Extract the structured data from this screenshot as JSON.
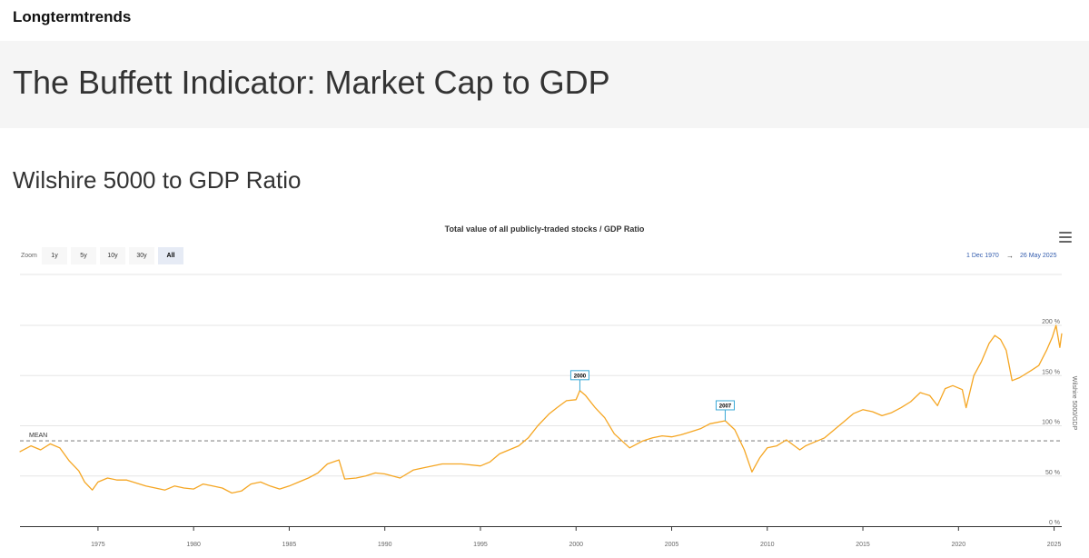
{
  "brand": "Longtermtrends",
  "page_title": "The Buffett Indicator: Market Cap to GDP",
  "section_title": "Wilshire 5000 to GDP Ratio",
  "colors": {
    "line": "#f5a623",
    "flag_border": "#3aa9d6",
    "mean": "#888888",
    "accent": "#335cad"
  },
  "range_selector": {
    "zoom_label": "Zoom",
    "buttons": [
      "1y",
      "5y",
      "10y",
      "30y",
      "All"
    ],
    "active": "All",
    "from": "1 Dec 1970",
    "arrow": "→",
    "to": "26 May 2025"
  },
  "menu_icon": "hamburger-icon",
  "chart_data": {
    "type": "line",
    "title": "Total value of all publicly-traded stocks / GDP Ratio",
    "ylabel": "Wilshire 5000/GDP",
    "xlim": [
      1970.92,
      2025.4
    ],
    "ylim": [
      0,
      200
    ],
    "x_ticks": [
      1975,
      1980,
      1985,
      1990,
      1995,
      2000,
      2005,
      2010,
      2015,
      2020,
      2025
    ],
    "y_ticks": [
      {
        "value": 0,
        "label": "0 %"
      },
      {
        "value": 50,
        "label": "50 %"
      },
      {
        "value": 100,
        "label": "100 %"
      },
      {
        "value": 150,
        "label": "150 %"
      },
      {
        "value": 200,
        "label": "200 %"
      }
    ],
    "mean": {
      "value": 85,
      "label": "MEAN"
    },
    "flags": [
      {
        "x": 2000.2,
        "y": 135,
        "label": "2000"
      },
      {
        "x": 2007.8,
        "y": 105,
        "label": "2007"
      }
    ],
    "grid": true,
    "series": [
      {
        "x": [
          1970.9,
          1971.5,
          1972.0,
          1972.5,
          1973.0,
          1973.5,
          1974.0,
          1974.3,
          1974.7,
          1975.0,
          1975.5,
          1976.0,
          1976.5,
          1977.0,
          1977.5,
          1978.0,
          1978.5,
          1979.0,
          1979.5,
          1980.0,
          1980.5,
          1981.0,
          1981.5,
          1982.0,
          1982.5,
          1983.0,
          1983.5,
          1984.0,
          1984.5,
          1985.0,
          1985.5,
          1986.0,
          1986.5,
          1987.0,
          1987.6,
          1987.9,
          1988.5,
          1989.0,
          1989.5,
          1990.0,
          1990.8,
          1991.5,
          1992.0,
          1993.0,
          1994.0,
          1995.0,
          1995.5,
          1996.0,
          1996.5,
          1997.0,
          1997.5,
          1998.0,
          1998.6,
          1999.0,
          1999.5,
          2000.0,
          2000.2,
          2000.5,
          2001.0,
          2001.5,
          2002.0,
          2002.8,
          2003.5,
          2004.0,
          2004.5,
          2005.0,
          2005.5,
          2006.0,
          2006.5,
          2007.0,
          2007.8,
          2008.3,
          2008.8,
          2009.2,
          2009.6,
          2010.0,
          2010.5,
          2011.0,
          2011.7,
          2012.0,
          2012.5,
          2013.0,
          2013.5,
          2014.0,
          2014.5,
          2015.0,
          2015.5,
          2016.0,
          2016.5,
          2017.0,
          2017.5,
          2018.0,
          2018.5,
          2018.9,
          2019.3,
          2019.7,
          2020.2,
          2020.4,
          2020.8,
          2021.2,
          2021.6,
          2021.9,
          2022.2,
          2022.5,
          2022.8,
          2023.2,
          2023.8,
          2024.2,
          2024.6,
          2024.9,
          2025.1,
          2025.3,
          2025.4
        ],
        "y": [
          74,
          80,
          76,
          82,
          78,
          65,
          55,
          44,
          36,
          44,
          48,
          46,
          46,
          43,
          40,
          38,
          36,
          40,
          38,
          37,
          42,
          40,
          38,
          33,
          35,
          42,
          44,
          40,
          37,
          40,
          44,
          48,
          53,
          62,
          66,
          47,
          48,
          50,
          53,
          52,
          48,
          56,
          58,
          62,
          62,
          60,
          64,
          72,
          76,
          80,
          88,
          100,
          112,
          118,
          125,
          126,
          135,
          130,
          118,
          108,
          92,
          78,
          85,
          88,
          90,
          89,
          91,
          94,
          97,
          102,
          105,
          96,
          76,
          54,
          68,
          78,
          80,
          86,
          76,
          80,
          84,
          88,
          96,
          104,
          112,
          116,
          114,
          110,
          113,
          118,
          124,
          133,
          130,
          120,
          137,
          140,
          136,
          118,
          150,
          164,
          182,
          190,
          186,
          175,
          145,
          148,
          155,
          160,
          175,
          188,
          200,
          178,
          192
        ]
      }
    ]
  }
}
